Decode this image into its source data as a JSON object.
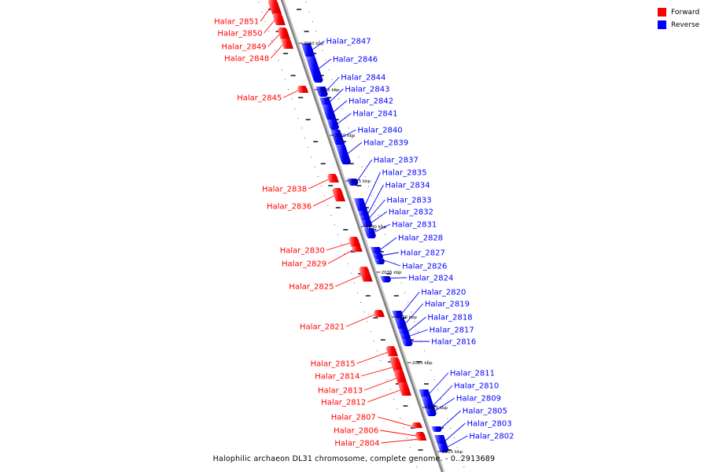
{
  "caption": "Halophilic archaeon DL31 chromosome, complete genome. - 0..2913689",
  "legend": [
    {
      "label": "Forward",
      "color": "#ff0000"
    },
    {
      "label": "Reverse",
      "color": "#0000ff"
    }
  ],
  "colors": {
    "forward": "#ff0000",
    "reverse": "#0000ff",
    "backbone": "#808080",
    "tick": "#000000"
  },
  "scale_labels": [
    "2060 kbp",
    "2055 kbp",
    "2050 kbp",
    "2045 kbp",
    "2040 kbp",
    "2035 kbp",
    "2030 kbp",
    "2025 kbp",
    "2020 kbp",
    "2015 kbp"
  ],
  "genes_forward": [
    "Halar_2851",
    "Halar_2850",
    "Halar_2849",
    "Halar_2848",
    "Halar_2845",
    "Halar_2838",
    "Halar_2836",
    "Halar_2830",
    "Halar_2829",
    "Halar_2825",
    "Halar_2821",
    "Halar_2815",
    "Halar_2814",
    "Halar_2813",
    "Halar_2812",
    "Halar_2807",
    "Halar_2806",
    "Halar_2804"
  ],
  "genes_reverse": [
    "Halar_2847",
    "Halar_2846",
    "Halar_2844",
    "Halar_2843",
    "Halar_2842",
    "Halar_2841",
    "Halar_2840",
    "Halar_2839",
    "Halar_2837",
    "Halar_2835",
    "Halar_2834",
    "Halar_2833",
    "Halar_2832",
    "Halar_2831",
    "Halar_2828",
    "Halar_2827",
    "Halar_2826",
    "Halar_2824",
    "Halar_2820",
    "Halar_2819",
    "Halar_2818",
    "Halar_2817",
    "Halar_2816",
    "Halar_2811",
    "Halar_2810",
    "Halar_2809",
    "Halar_2805",
    "Halar_2803",
    "Halar_2802"
  ]
}
